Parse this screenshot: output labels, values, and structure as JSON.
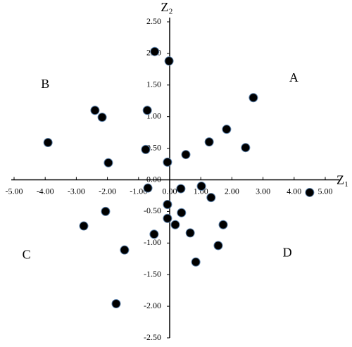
{
  "chart_data": {
    "type": "scatter",
    "xlabel": "Z₁",
    "ylabel": "Z₂",
    "annotations": [
      {
        "text": "A",
        "x": 3.99,
        "y": 1.6
      },
      {
        "text": "B",
        "x": -4.0,
        "y": 1.5
      },
      {
        "text": "C",
        "x": -4.6,
        "y": -1.2
      },
      {
        "text": "D",
        "x": 3.78,
        "y": -1.17
      }
    ],
    "color": "#000000",
    "x": [
      -0.48,
      -0.02,
      2.69,
      -2.4,
      -2.17,
      -0.72,
      1.83,
      -3.91,
      1.27,
      2.44,
      -0.77,
      0.52,
      -1.97,
      -0.07,
      -0.7,
      1.02,
      0.36,
      1.33,
      4.5,
      -0.07,
      -2.06,
      0.38,
      -2.76,
      -0.07,
      0.18,
      1.72,
      -0.5,
      0.66,
      1.56,
      -1.45,
      0.84,
      -1.72
    ],
    "values": [
      2.03,
      1.88,
      1.3,
      1.1,
      0.99,
      1.1,
      0.8,
      0.59,
      0.6,
      0.51,
      0.48,
      0.4,
      0.27,
      0.28,
      -0.13,
      -0.1,
      -0.14,
      -0.28,
      -0.2,
      -0.39,
      -0.5,
      -0.52,
      -0.73,
      -0.61,
      -0.71,
      -0.71,
      -0.86,
      -0.84,
      -1.04,
      -1.11,
      -1.3,
      -1.96
    ],
    "xlim": [
      -5,
      5
    ],
    "ylim": [
      -2.5,
      2.5
    ],
    "xticks": [
      {
        "value": -5,
        "label": "-5.00"
      },
      {
        "value": -4,
        "label": "-4.00"
      },
      {
        "value": -3,
        "label": "-3.00"
      },
      {
        "value": -2,
        "label": "-2.00"
      },
      {
        "value": -1,
        "label": "-1.00"
      },
      {
        "value": 0,
        "label": "0.00"
      },
      {
        "value": 1,
        "label": "1.00"
      },
      {
        "value": 2,
        "label": "2.00"
      },
      {
        "value": 3,
        "label": "3.00"
      },
      {
        "value": 4,
        "label": "4.00"
      },
      {
        "value": 5,
        "label": "5.00"
      }
    ],
    "yticks": [
      {
        "value": -2.5,
        "label": "-2.50"
      },
      {
        "value": -2,
        "label": "-2.00"
      },
      {
        "value": -1.5,
        "label": "-1.50"
      },
      {
        "value": -1,
        "label": "-1.00"
      },
      {
        "value": -0.5,
        "label": "-0.50"
      },
      {
        "value": 0,
        "label": "0.00"
      },
      {
        "value": 0.5,
        "label": "0.50"
      },
      {
        "value": 1,
        "label": "1.00"
      },
      {
        "value": 1.5,
        "label": "1.50"
      },
      {
        "value": 2,
        "label": "2.00"
      },
      {
        "value": 2.5,
        "label": "2.50"
      }
    ],
    "grid": false
  }
}
